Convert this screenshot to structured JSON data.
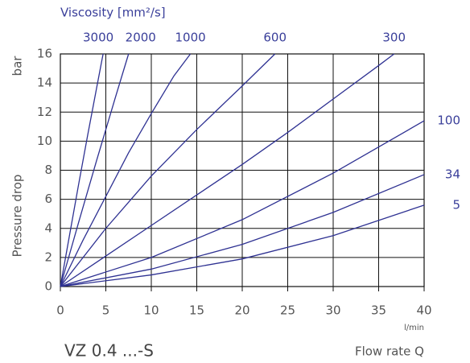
{
  "chart_data": {
    "type": "line",
    "title": "Viscosity [mm²/s]",
    "subtitle": "VZ 0.4 ...-S",
    "x_label": "Flow rate Q",
    "x_unit": "l/min",
    "y_label": "Pressure drop",
    "y_unit": "bar",
    "xlim": [
      0,
      40
    ],
    "ylim": [
      0,
      16
    ],
    "xticks": [
      0,
      5,
      10,
      15,
      20,
      25,
      30,
      35,
      40
    ],
    "yticks": [
      0,
      2,
      4,
      6,
      8,
      10,
      12,
      14,
      16
    ],
    "grid": true,
    "series": [
      {
        "name": "3000",
        "color": "#2e3192",
        "x": [
          0,
          1,
          2,
          3,
          4,
          4.7
        ],
        "values": [
          0,
          3.5,
          7,
          10.4,
          13.7,
          16
        ]
      },
      {
        "name": "2000",
        "color": "#2e3192",
        "x": [
          0,
          2,
          4,
          6,
          7.5
        ],
        "values": [
          0,
          4.4,
          8.7,
          12.9,
          16
        ]
      },
      {
        "name": "1000",
        "color": "#2e3192",
        "x": [
          0,
          2.5,
          5,
          7.5,
          10,
          12.5,
          14.3
        ],
        "values": [
          0,
          3.2,
          6.2,
          9.2,
          11.9,
          14.5,
          16
        ]
      },
      {
        "name": "600",
        "color": "#2e3192",
        "x": [
          0,
          5,
          10,
          15,
          20,
          23.6
        ],
        "values": [
          0,
          4,
          7.6,
          10.8,
          13.8,
          16
        ]
      },
      {
        "name": "300",
        "color": "#2e3192",
        "x": [
          0,
          5,
          10,
          15,
          20,
          25,
          30,
          35,
          36.7
        ],
        "values": [
          0,
          2.1,
          4.2,
          6.3,
          8.4,
          10.6,
          12.9,
          15.2,
          16
        ]
      },
      {
        "name": "100",
        "color": "#2e3192",
        "x": [
          0,
          10,
          20,
          30,
          40
        ],
        "values": [
          0,
          2,
          4.6,
          7.8,
          11.4
        ]
      },
      {
        "name": "34",
        "color": "#2e3192",
        "x": [
          0,
          10,
          20,
          30,
          40
        ],
        "values": [
          0,
          1.2,
          2.9,
          5.1,
          7.7
        ]
      },
      {
        "name": "5",
        "color": "#2e3192",
        "x": [
          0,
          10,
          20,
          30,
          40
        ],
        "values": [
          0,
          0.8,
          1.9,
          3.5,
          5.6
        ]
      }
    ]
  }
}
